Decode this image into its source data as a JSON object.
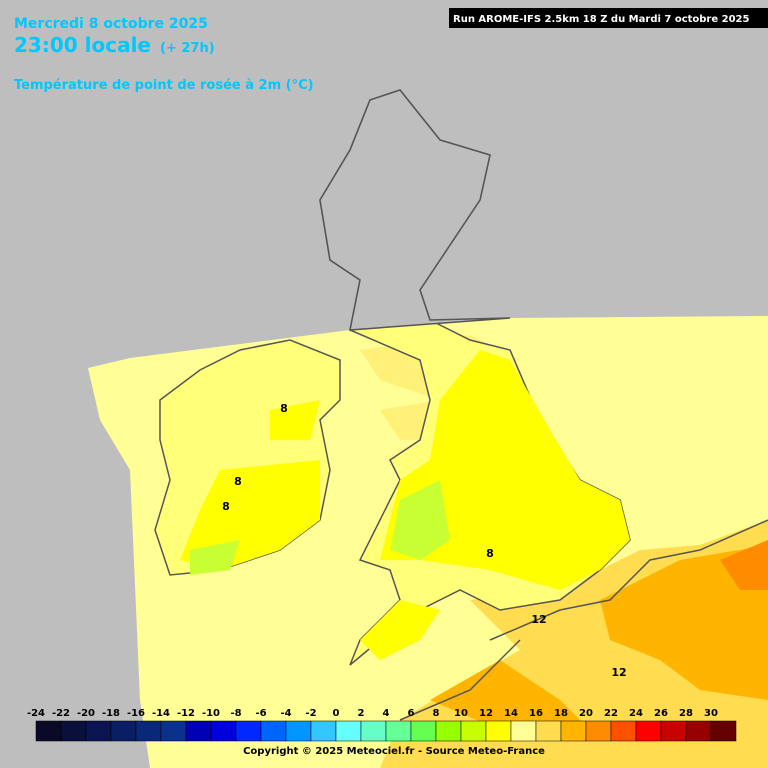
{
  "header": {
    "date": "Mercredi 8 octobre 2025",
    "time": "23:00 locale",
    "lead": "(+ 27h)",
    "parameter": "Température de point de rosée à 2m (°C)",
    "run": "Run AROME-IFS 2.5km 18 Z du Mardi 7 octobre 2025"
  },
  "contour_labels": [
    "8",
    "8",
    "8",
    "8",
    "12",
    "12"
  ],
  "legend": {
    "ticks": [
      -24,
      -22,
      -20,
      -18,
      -16,
      -14,
      -12,
      -10,
      -8,
      -6,
      -4,
      -2,
      0,
      2,
      4,
      6,
      8,
      10,
      12,
      14,
      16,
      18,
      20,
      22,
      24,
      26,
      28,
      30
    ],
    "colors": [
      "#0a0a28",
      "#0a0f3c",
      "#0a1450",
      "#0a1e64",
      "#0a2878",
      "#0a328c",
      "#0000b4",
      "#0000dc",
      "#0028ff",
      "#0064ff",
      "#0096ff",
      "#32c8ff",
      "#64ffff",
      "#64ffc8",
      "#64ff96",
      "#64ff50",
      "#96ff00",
      "#c8ff00",
      "#ffff00",
      "#ffff96",
      "#ffdc50",
      "#ffb400",
      "#ff8c00",
      "#ff5000",
      "#ff0000",
      "#c80000",
      "#960000",
      "#640000"
    ]
  },
  "footer": {
    "copyright": "Copyright © 2025 Meteociel.fr - Source Meteo-France"
  }
}
